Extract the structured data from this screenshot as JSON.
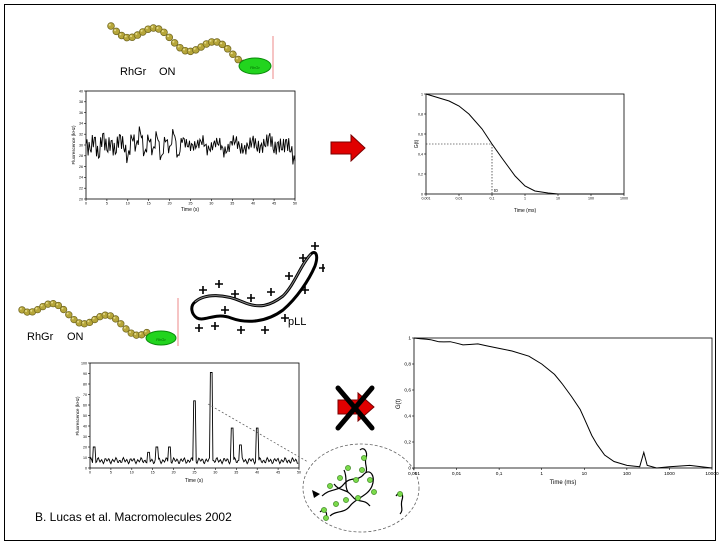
{
  "labels": {
    "rhgr": "RhGr",
    "on": "ON",
    "pll": "pLL",
    "bead_tag": "RhGr",
    "credit": "B. Lucas et al. Macromolecules 2002"
  },
  "chart_data": [
    {
      "type": "line",
      "title": "",
      "xlabel": "Time (s)",
      "ylabel": "Fluorescence (kHz)",
      "xlim": [
        0,
        50
      ],
      "ylim": [
        20,
        40
      ],
      "xticks": [
        "0",
        "5",
        "10",
        "15",
        "20",
        "25",
        "30",
        "35",
        "40",
        "45",
        "50"
      ],
      "yticks": [
        "20",
        "22",
        "24",
        "26",
        "28",
        "30",
        "32",
        "34",
        "36",
        "38",
        "40"
      ],
      "trace": "noisy signal fluctuating between about 26 and 33 kHz around 30 kHz",
      "points": [
        [
          0,
          30.2
        ],
        [
          1,
          29.1
        ],
        [
          2,
          31.4
        ],
        [
          3,
          27.6
        ],
        [
          4,
          32.1
        ],
        [
          5,
          29.0
        ],
        [
          6,
          30.8
        ],
        [
          7,
          28.3
        ],
        [
          8,
          31.9
        ],
        [
          9,
          29.5
        ],
        [
          10,
          27.8
        ],
        [
          11,
          31.2
        ],
        [
          12,
          30.1
        ],
        [
          13,
          32.4
        ],
        [
          14,
          28.6
        ],
        [
          15,
          30.9
        ],
        [
          16,
          29.3
        ],
        [
          17,
          31.5
        ],
        [
          18,
          27.9
        ],
        [
          19,
          30.6
        ],
        [
          20,
          29.8
        ],
        [
          21,
          32.0
        ],
        [
          22,
          28.2
        ],
        [
          23,
          30.4
        ],
        [
          24,
          31.1
        ],
        [
          25,
          28.9
        ],
        [
          26,
          30.7
        ],
        [
          27,
          29.4
        ],
        [
          28,
          31.8
        ],
        [
          29,
          28.1
        ],
        [
          30,
          30.5
        ],
        [
          31,
          29.6
        ],
        [
          32,
          31.3
        ],
        [
          33,
          27.7
        ],
        [
          34,
          30.2
        ],
        [
          35,
          29.9
        ],
        [
          36,
          31.6
        ],
        [
          37,
          28.4
        ],
        [
          38,
          30.0
        ],
        [
          39,
          29.2
        ],
        [
          40,
          31.7
        ],
        [
          41,
          28.8
        ],
        [
          42,
          30.3
        ],
        [
          43,
          29.7
        ],
        [
          44,
          32.2
        ],
        [
          45,
          28.5
        ],
        [
          46,
          30.6
        ],
        [
          47,
          29.1
        ],
        [
          48,
          31.0
        ],
        [
          49,
          28.7
        ],
        [
          50,
          27.0
        ]
      ]
    },
    {
      "type": "line",
      "title": "",
      "xlabel": "Time (ms)",
      "ylabel": "G(t)",
      "xscale": "log",
      "xlim": [
        0.001,
        1000
      ],
      "ylim": [
        0,
        1
      ],
      "xticks": [
        "0,001",
        "0,01",
        "0,1",
        "1",
        "10",
        "100",
        "1000"
      ],
      "yticks": [
        "0",
        "0,2",
        "0,4",
        "0,6",
        "0,8",
        "1"
      ],
      "annotation": "t0",
      "guide": {
        "x": 0.1,
        "y": 0.5
      },
      "points": [
        [
          0.001,
          1.0
        ],
        [
          0.002,
          0.97
        ],
        [
          0.005,
          0.93
        ],
        [
          0.01,
          0.88
        ],
        [
          0.02,
          0.8
        ],
        [
          0.05,
          0.65
        ],
        [
          0.1,
          0.5
        ],
        [
          0.2,
          0.36
        ],
        [
          0.5,
          0.18
        ],
        [
          1,
          0.08
        ],
        [
          2,
          0.03
        ],
        [
          5,
          0.01
        ],
        [
          10,
          0.0
        ],
        [
          100,
          0.0
        ],
        [
          1000,
          0.0
        ]
      ]
    },
    {
      "type": "line",
      "title": "",
      "xlabel": "Time (s)",
      "ylabel": "Fluorescence (kHz)",
      "xlim": [
        0,
        50
      ],
      "ylim": [
        0,
        100
      ],
      "xticks": [
        "0",
        "5",
        "10",
        "15",
        "20",
        "25",
        "30",
        "35",
        "40",
        "45",
        "50"
      ],
      "yticks": [
        "0",
        "10",
        "20",
        "30",
        "40",
        "50",
        "60",
        "70",
        "80",
        "90",
        "100"
      ],
      "baseline": 7,
      "peaks": [
        [
          1,
          20
        ],
        [
          14,
          15
        ],
        [
          16,
          20
        ],
        [
          19,
          20
        ],
        [
          25,
          64
        ],
        [
          29,
          91
        ],
        [
          34,
          38
        ],
        [
          36,
          22
        ],
        [
          40,
          38
        ]
      ]
    },
    {
      "type": "line",
      "title": "",
      "xlabel": "Time (ms)",
      "ylabel": "G(t)",
      "xscale": "log",
      "xlim": [
        0.001,
        10000
      ],
      "ylim": [
        0,
        1
      ],
      "xticks": [
        "0,001",
        "0,01",
        "0,1",
        "1",
        "10",
        "100",
        "1000",
        "10000"
      ],
      "yticks": [
        "0",
        "0,2",
        "0,4",
        "0,6",
        "0,8",
        "1"
      ],
      "points": [
        [
          0.001,
          1.0
        ],
        [
          0.002,
          0.99
        ],
        [
          0.003,
          0.98
        ],
        [
          0.005,
          0.97
        ],
        [
          0.01,
          0.96
        ],
        [
          0.02,
          0.95
        ],
        [
          0.05,
          0.94
        ],
        [
          0.1,
          0.92
        ],
        [
          0.2,
          0.9
        ],
        [
          0.5,
          0.86
        ],
        [
          1,
          0.8
        ],
        [
          2,
          0.72
        ],
        [
          3,
          0.65
        ],
        [
          5,
          0.55
        ],
        [
          8,
          0.45
        ],
        [
          10,
          0.38
        ],
        [
          15,
          0.25
        ],
        [
          20,
          0.18
        ],
        [
          30,
          0.1
        ],
        [
          50,
          0.05
        ],
        [
          100,
          0.02
        ],
        [
          200,
          0.01
        ],
        [
          250,
          0.12
        ],
        [
          300,
          0.02
        ],
        [
          500,
          0.0
        ],
        [
          1000,
          0.01
        ],
        [
          3000,
          0.02
        ],
        [
          10000,
          0.0
        ]
      ]
    }
  ]
}
